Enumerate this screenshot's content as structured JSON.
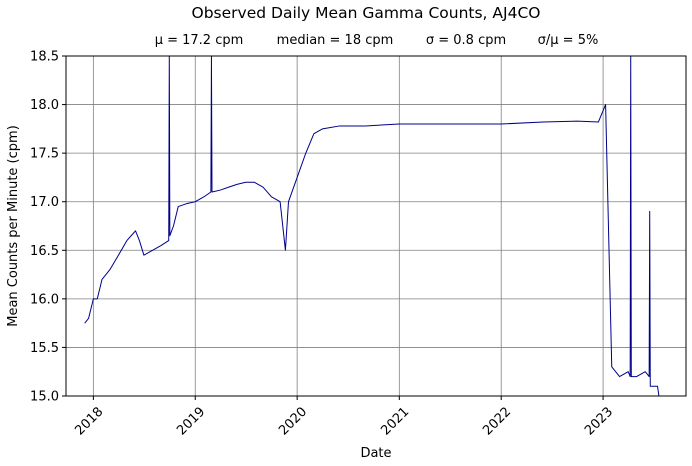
{
  "chart_data": {
    "type": "line",
    "title": "Observed Daily Mean Gamma Counts, AJ4CO",
    "subtitle": {
      "mean": "μ = 17.2 cpm",
      "median": "median = 18 cpm",
      "sigma": "σ = 0.8 cpm",
      "cv": "σ/μ = 5%"
    },
    "xlabel": "Date",
    "ylabel": "Mean Counts per Minute (cpm)",
    "xlim": [
      "2017-09-25",
      "2023-10-25"
    ],
    "ylim": [
      15.0,
      18.5
    ],
    "x_ticks": [
      "2018",
      "2019",
      "2020",
      "2021",
      "2022",
      "2023"
    ],
    "y_ticks": [
      "15.0",
      "15.5",
      "16.0",
      "16.5",
      "17.0",
      "17.5",
      "18.0",
      "18.5"
    ],
    "grid": true,
    "line_color": "#00008b",
    "series": [
      {
        "x": [
          "2017-12-01",
          "2017-12-15",
          "2018-01-01",
          "2018-01-15",
          "2018-02-01",
          "2018-03-01",
          "2018-04-01",
          "2018-05-01",
          "2018-06-01",
          "2018-06-15",
          "2018-07-01",
          "2018-08-01",
          "2018-09-01",
          "2018-09-28",
          "2018-09-30",
          "2018-10-02",
          "2018-10-15",
          "2018-11-01",
          "2018-12-01",
          "2019-01-01",
          "2019-02-01",
          "2019-02-26",
          "2019-02-28",
          "2019-03-02",
          "2019-04-01",
          "2019-05-01",
          "2019-06-01",
          "2019-07-01",
          "2019-08-01",
          "2019-09-01",
          "2019-10-01",
          "2019-11-01",
          "2019-11-20",
          "2019-12-01",
          "2020-01-01",
          "2020-02-01",
          "2020-03-01",
          "2020-04-01",
          "2020-06-01",
          "2020-09-01",
          "2021-01-01",
          "2021-06-01",
          "2022-01-01",
          "2022-06-01",
          "2022-10-01",
          "2022-12-15",
          "2023-01-10",
          "2023-02-01",
          "2023-02-15",
          "2023-03-01",
          "2023-04-01",
          "2023-04-08",
          "2023-04-10",
          "2023-04-12",
          "2023-05-01",
          "2023-06-01",
          "2023-06-15",
          "2023-06-17",
          "2023-06-19",
          "2023-07-01",
          "2023-07-15",
          "2023-07-20"
        ],
        "y": [
          15.75,
          15.8,
          16.0,
          16.0,
          16.2,
          16.3,
          16.45,
          16.6,
          16.7,
          16.6,
          16.45,
          16.5,
          16.55,
          16.6,
          18.5,
          16.65,
          16.75,
          16.95,
          16.98,
          17.0,
          17.05,
          17.1,
          18.5,
          17.1,
          17.12,
          17.15,
          17.18,
          17.2,
          17.2,
          17.15,
          17.05,
          17.0,
          16.5,
          17.0,
          17.25,
          17.5,
          17.7,
          17.75,
          17.78,
          17.78,
          17.8,
          17.8,
          17.8,
          17.82,
          17.83,
          17.82,
          18.0,
          15.3,
          15.25,
          15.2,
          15.25,
          15.2,
          18.5,
          15.2,
          15.2,
          15.25,
          15.2,
          16.9,
          15.1,
          15.1,
          15.1,
          15.0
        ]
      }
    ]
  }
}
